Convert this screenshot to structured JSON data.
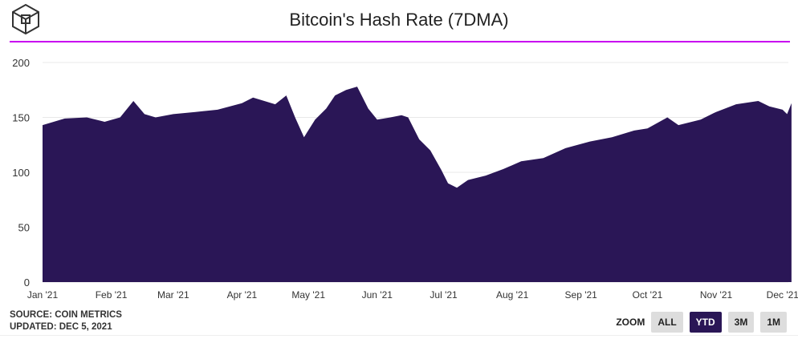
{
  "title": "Bitcoin's Hash Rate (7DMA)",
  "source": "SOURCE: COIN METRICS",
  "updated": "UPDATED: DEC 5, 2021",
  "zoom": {
    "label": "ZOOM",
    "buttons": [
      "ALL",
      "YTD",
      "3M",
      "1M"
    ],
    "active": "YTD"
  },
  "colors": {
    "area": "#2a1656",
    "accent": "#c800f0"
  },
  "chart_data": {
    "type": "area",
    "title": "Bitcoin's Hash Rate (7DMA)",
    "xlabel": "",
    "ylabel": "",
    "ylim": [
      0,
      200
    ],
    "yticks": [
      0,
      50,
      100,
      150,
      200
    ],
    "xticks": [
      "Jan '21",
      "Feb '21",
      "Mar '21",
      "Apr '21",
      "May '21",
      "Jun '21",
      "Jul '21",
      "Aug '21",
      "Sep '21",
      "Oct '21",
      "Nov '21",
      "Dec '21"
    ],
    "xtick_days": [
      0,
      31,
      59,
      90,
      120,
      151,
      181,
      212,
      243,
      273,
      304,
      334
    ],
    "x_day": [
      0,
      10,
      20,
      28,
      35,
      41,
      46,
      51,
      59,
      69,
      79,
      90,
      95,
      105,
      110,
      114,
      118,
      123,
      128,
      132,
      137,
      142,
      147,
      151,
      157,
      162,
      165,
      170,
      175,
      180,
      183,
      187,
      192,
      200,
      208,
      216,
      226,
      236,
      247,
      257,
      267,
      273,
      282,
      287,
      297,
      304,
      313,
      323,
      328,
      334,
      336,
      338
    ],
    "values": [
      143,
      149,
      150,
      146,
      150,
      165,
      153,
      150,
      153,
      155,
      157,
      163,
      168,
      162,
      170,
      150,
      132,
      148,
      158,
      170,
      175,
      178,
      158,
      148,
      150,
      152,
      150,
      130,
      120,
      102,
      90,
      86,
      93,
      97,
      103,
      110,
      113,
      122,
      128,
      132,
      138,
      140,
      150,
      143,
      148,
      155,
      162,
      165,
      160,
      157,
      153,
      163
    ]
  }
}
